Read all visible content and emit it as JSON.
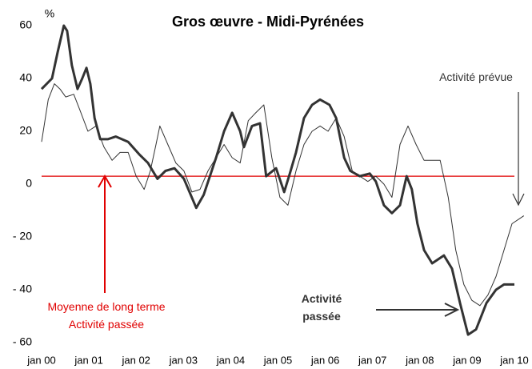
{
  "chart_data": {
    "type": "line",
    "title": "Gros œuvre  - Midi-Pyrénées",
    "y_label": "%",
    "xlim": [
      0,
      10
    ],
    "xticks": [
      {
        "value": 0,
        "label": "jan 00"
      },
      {
        "value": 1,
        "label": "jan 01"
      },
      {
        "value": 2,
        "label": "jan 02"
      },
      {
        "value": 3,
        "label": "jan 03"
      },
      {
        "value": 4,
        "label": "jan 04"
      },
      {
        "value": 5,
        "label": "jan 05"
      },
      {
        "value": 6,
        "label": "jan 06"
      },
      {
        "value": 7,
        "label": "jan 07"
      },
      {
        "value": 8,
        "label": "jan 08"
      },
      {
        "value": 9,
        "label": "jan 09"
      },
      {
        "value": 10,
        "label": "jan 10"
      }
    ],
    "ylim": [
      -60,
      60
    ],
    "yticks": [
      60,
      40,
      20,
      0,
      {
        "value": -20,
        "label": "- 20"
      },
      {
        "value": -40,
        "label": "- 40"
      },
      {
        "value": -60,
        "label": "- 60"
      }
    ],
    "grid": false,
    "reference_line": {
      "value": 3,
      "color": "#e00000",
      "label": [
        "Moyenne de long terme",
        "Activité passée"
      ]
    },
    "series": [
      {
        "name": "Activité passée",
        "color": "#333333",
        "width": 3,
        "x": [
          0,
          0.22,
          0.34,
          0.47,
          0.54,
          0.64,
          0.76,
          0.86,
          0.95,
          1.03,
          1.12,
          1.24,
          1.4,
          1.57,
          1.83,
          2.08,
          2.25,
          2.45,
          2.62,
          2.81,
          3.01,
          3.27,
          3.43,
          3.69,
          3.86,
          4.03,
          4.2,
          4.28,
          4.45,
          4.62,
          4.75,
          4.96,
          5.13,
          5.25,
          5.38,
          5.55,
          5.72,
          5.89,
          6.09,
          6.23,
          6.4,
          6.53,
          6.73,
          6.94,
          7.07,
          7.24,
          7.41,
          7.58,
          7.72,
          7.83,
          7.95,
          8.09,
          8.26,
          8.51,
          8.68,
          8.85,
          9.02,
          9.19,
          9.41,
          9.61,
          9.78,
          10.0
        ],
        "values": [
          36,
          40,
          50,
          60,
          58,
          45,
          36,
          40,
          44,
          38,
          25,
          17,
          17,
          18,
          16,
          11,
          8,
          2,
          5,
          6,
          2,
          -9,
          -4,
          10,
          20,
          27,
          20,
          14,
          22,
          23,
          3,
          6,
          -3,
          4,
          12,
          25,
          30,
          32,
          30,
          25,
          10,
          5,
          3,
          4,
          1,
          -8,
          -11,
          -8,
          3,
          -2,
          -15,
          -25,
          -30,
          -27,
          -32,
          -45,
          -57,
          -55,
          -45,
          -40,
          -38,
          -38
        ]
      },
      {
        "name": "Activité prévue",
        "color": "#333333",
        "width": 1,
        "x": [
          0,
          0.14,
          0.27,
          0.39,
          0.51,
          0.68,
          0.81,
          0.98,
          1.15,
          1.32,
          1.49,
          1.66,
          1.83,
          2.0,
          2.17,
          2.3,
          2.42,
          2.5,
          2.67,
          2.84,
          3.01,
          3.18,
          3.35,
          3.52,
          3.69,
          3.86,
          4.03,
          4.2,
          4.37,
          4.53,
          4.7,
          4.87,
          5.04,
          5.21,
          5.38,
          5.55,
          5.72,
          5.89,
          6.06,
          6.23,
          6.4,
          6.57,
          6.73,
          6.9,
          7.07,
          7.24,
          7.41,
          7.58,
          7.75,
          7.92,
          8.09,
          8.26,
          8.43,
          8.6,
          8.76,
          8.93,
          9.1,
          9.27,
          9.44,
          9.61,
          9.78,
          9.95,
          10.2
        ],
        "values": [
          16,
          32,
          38,
          36,
          33,
          34,
          28,
          20,
          22,
          14,
          9,
          12,
          12,
          3,
          -2,
          5,
          15,
          22,
          15,
          8,
          5,
          -3,
          -2,
          5,
          10,
          15,
          10,
          8,
          24,
          27,
          30,
          10,
          -5,
          -8,
          5,
          15,
          20,
          22,
          20,
          25,
          18,
          5,
          3,
          1,
          3,
          0,
          -5,
          15,
          22,
          15,
          9,
          9,
          9,
          -5,
          -25,
          -38,
          -44,
          -46,
          -42,
          -35,
          -25,
          -15,
          -12
        ]
      }
    ]
  }
}
